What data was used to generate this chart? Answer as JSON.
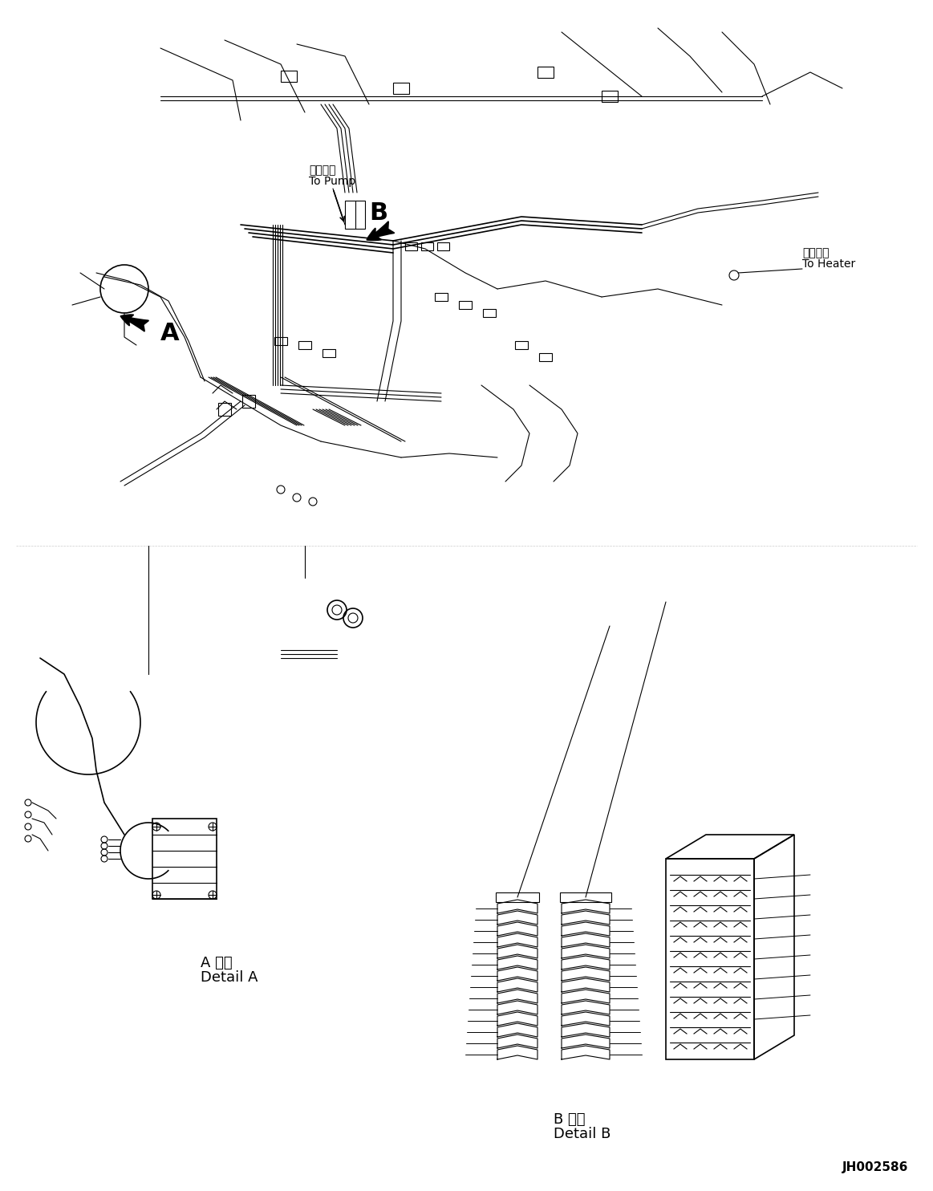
{
  "bg_color": "#ffffff",
  "line_color": "#000000",
  "fig_width": 11.63,
  "fig_height": 14.84,
  "dpi": 100,
  "label_pump_ja": "ポンプへ",
  "label_pump_en": "To Pump",
  "label_heater_ja": "ヒータへ",
  "label_heater_en": "To Heater",
  "label_A_detail_ja": "A 詳細",
  "label_A_detail_en": "Detail A",
  "label_B_detail_ja": "B 詳細",
  "label_B_detail_en": "Detail B",
  "label_code": "JH002586",
  "label_A": "A",
  "label_B": "B"
}
